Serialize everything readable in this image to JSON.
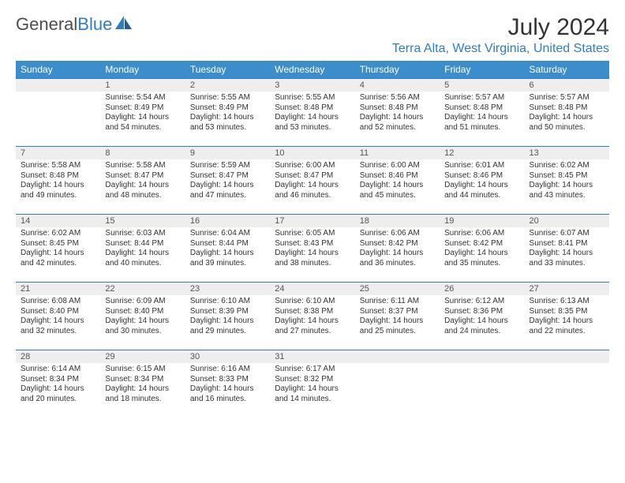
{
  "brand": {
    "general": "General",
    "blue": "Blue"
  },
  "title": "July 2024",
  "location": "Terra Alta, West Virginia, United States",
  "accent_color": "#3c8dcc",
  "header_bg": "#eeeeee",
  "border_color": "#2f7ec2",
  "text_color": "#333333",
  "font_size_cell": 10,
  "weekdays": [
    "Sunday",
    "Monday",
    "Tuesday",
    "Wednesday",
    "Thursday",
    "Friday",
    "Saturday"
  ],
  "first_weekday_index": 1,
  "days": [
    {
      "n": 1,
      "sr": "5:54 AM",
      "ss": "8:49 PM",
      "dl": "14 hours and 54 minutes."
    },
    {
      "n": 2,
      "sr": "5:55 AM",
      "ss": "8:49 PM",
      "dl": "14 hours and 53 minutes."
    },
    {
      "n": 3,
      "sr": "5:55 AM",
      "ss": "8:48 PM",
      "dl": "14 hours and 53 minutes."
    },
    {
      "n": 4,
      "sr": "5:56 AM",
      "ss": "8:48 PM",
      "dl": "14 hours and 52 minutes."
    },
    {
      "n": 5,
      "sr": "5:57 AM",
      "ss": "8:48 PM",
      "dl": "14 hours and 51 minutes."
    },
    {
      "n": 6,
      "sr": "5:57 AM",
      "ss": "8:48 PM",
      "dl": "14 hours and 50 minutes."
    },
    {
      "n": 7,
      "sr": "5:58 AM",
      "ss": "8:48 PM",
      "dl": "14 hours and 49 minutes."
    },
    {
      "n": 8,
      "sr": "5:58 AM",
      "ss": "8:47 PM",
      "dl": "14 hours and 48 minutes."
    },
    {
      "n": 9,
      "sr": "5:59 AM",
      "ss": "8:47 PM",
      "dl": "14 hours and 47 minutes."
    },
    {
      "n": 10,
      "sr": "6:00 AM",
      "ss": "8:47 PM",
      "dl": "14 hours and 46 minutes."
    },
    {
      "n": 11,
      "sr": "6:00 AM",
      "ss": "8:46 PM",
      "dl": "14 hours and 45 minutes."
    },
    {
      "n": 12,
      "sr": "6:01 AM",
      "ss": "8:46 PM",
      "dl": "14 hours and 44 minutes."
    },
    {
      "n": 13,
      "sr": "6:02 AM",
      "ss": "8:45 PM",
      "dl": "14 hours and 43 minutes."
    },
    {
      "n": 14,
      "sr": "6:02 AM",
      "ss": "8:45 PM",
      "dl": "14 hours and 42 minutes."
    },
    {
      "n": 15,
      "sr": "6:03 AM",
      "ss": "8:44 PM",
      "dl": "14 hours and 40 minutes."
    },
    {
      "n": 16,
      "sr": "6:04 AM",
      "ss": "8:44 PM",
      "dl": "14 hours and 39 minutes."
    },
    {
      "n": 17,
      "sr": "6:05 AM",
      "ss": "8:43 PM",
      "dl": "14 hours and 38 minutes."
    },
    {
      "n": 18,
      "sr": "6:06 AM",
      "ss": "8:42 PM",
      "dl": "14 hours and 36 minutes."
    },
    {
      "n": 19,
      "sr": "6:06 AM",
      "ss": "8:42 PM",
      "dl": "14 hours and 35 minutes."
    },
    {
      "n": 20,
      "sr": "6:07 AM",
      "ss": "8:41 PM",
      "dl": "14 hours and 33 minutes."
    },
    {
      "n": 21,
      "sr": "6:08 AM",
      "ss": "8:40 PM",
      "dl": "14 hours and 32 minutes."
    },
    {
      "n": 22,
      "sr": "6:09 AM",
      "ss": "8:40 PM",
      "dl": "14 hours and 30 minutes."
    },
    {
      "n": 23,
      "sr": "6:10 AM",
      "ss": "8:39 PM",
      "dl": "14 hours and 29 minutes."
    },
    {
      "n": 24,
      "sr": "6:10 AM",
      "ss": "8:38 PM",
      "dl": "14 hours and 27 minutes."
    },
    {
      "n": 25,
      "sr": "6:11 AM",
      "ss": "8:37 PM",
      "dl": "14 hours and 25 minutes."
    },
    {
      "n": 26,
      "sr": "6:12 AM",
      "ss": "8:36 PM",
      "dl": "14 hours and 24 minutes."
    },
    {
      "n": 27,
      "sr": "6:13 AM",
      "ss": "8:35 PM",
      "dl": "14 hours and 22 minutes."
    },
    {
      "n": 28,
      "sr": "6:14 AM",
      "ss": "8:34 PM",
      "dl": "14 hours and 20 minutes."
    },
    {
      "n": 29,
      "sr": "6:15 AM",
      "ss": "8:34 PM",
      "dl": "14 hours and 18 minutes."
    },
    {
      "n": 30,
      "sr": "6:16 AM",
      "ss": "8:33 PM",
      "dl": "14 hours and 16 minutes."
    },
    {
      "n": 31,
      "sr": "6:17 AM",
      "ss": "8:32 PM",
      "dl": "14 hours and 14 minutes."
    }
  ],
  "labels": {
    "sunrise": "Sunrise:",
    "sunset": "Sunset:",
    "daylight": "Daylight:"
  }
}
